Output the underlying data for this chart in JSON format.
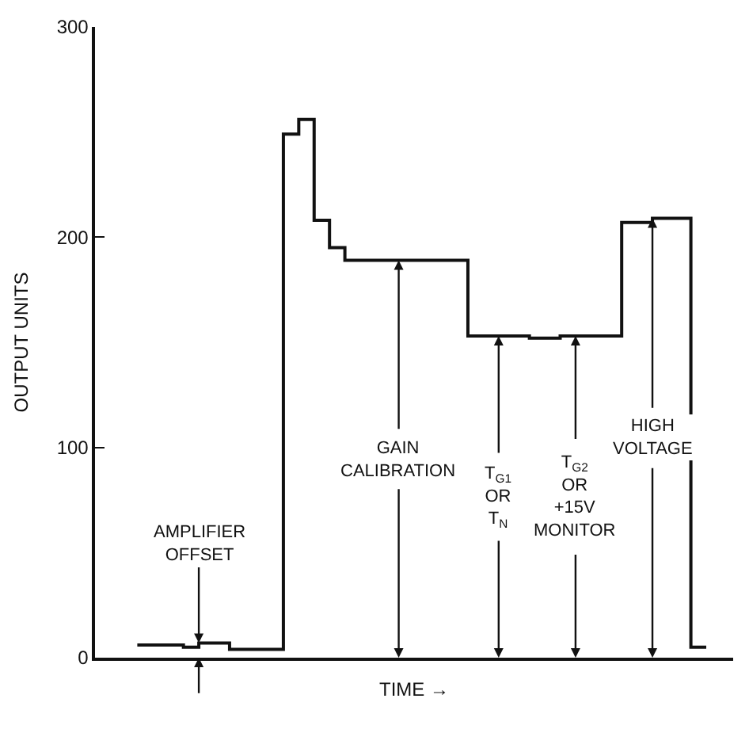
{
  "chart_data": {
    "type": "step",
    "xlabel": "TIME →",
    "ylabel": "OUTPUT UNITS",
    "categories": [
      null,
      null,
      null,
      null,
      null,
      null,
      null,
      null,
      null,
      null,
      null,
      null,
      null,
      null,
      null,
      null,
      null,
      null,
      null,
      null,
      null,
      null,
      null,
      null,
      null,
      null,
      null,
      null,
      null,
      null,
      null,
      null,
      null,
      null,
      null,
      null,
      null,
      null,
      null,
      null,
      null,
      null,
      null,
      null,
      null,
      null,
      null,
      null,
      null,
      null,
      null,
      null,
      null,
      null,
      null,
      null,
      null,
      null,
      null,
      null,
      null,
      null,
      null,
      null,
      null,
      null,
      null,
      null,
      null,
      null,
      null,
      null,
      null,
      null,
      null
    ],
    "values": [
      6,
      6,
      6,
      6,
      6,
      6,
      5,
      5,
      7,
      7,
      7,
      7,
      4,
      4,
      4,
      4,
      4,
      4,
      4,
      249,
      249,
      256,
      256,
      208,
      208,
      195,
      195,
      189,
      189,
      189,
      189,
      189,
      189,
      189,
      189,
      189,
      189,
      189,
      189,
      189,
      189,
      189,
      189,
      153,
      153,
      153,
      153,
      153,
      153,
      153,
      153,
      152,
      152,
      152,
      152,
      153,
      153,
      153,
      153,
      153,
      153,
      153,
      153,
      207,
      207,
      207,
      207,
      209,
      209,
      209,
      209,
      209,
      5,
      5,
      5
    ],
    "value_labels": [
      null,
      null,
      null,
      null,
      null,
      null,
      null,
      null,
      "AMPLIFIER\nOFFSET",
      null,
      null,
      null,
      null,
      null,
      null,
      null,
      null,
      null,
      null,
      null,
      null,
      null,
      null,
      null,
      null,
      null,
      null,
      null,
      null,
      null,
      null,
      null,
      null,
      null,
      "GAIN\nCALIBRATION",
      null,
      null,
      null,
      null,
      null,
      null,
      null,
      null,
      null,
      null,
      null,
      null,
      "T$_{G1}$\nOR\nT$_{N}$",
      null,
      null,
      null,
      null,
      null,
      null,
      null,
      null,
      null,
      "T$_{G2}$\nOR\n+15V\nMONITOR",
      null,
      null,
      null,
      null,
      null,
      null,
      null,
      null,
      null,
      "HIGH\nVOLTAGE",
      null,
      null,
      null,
      null,
      null,
      null,
      null
    ],
    "color": "#111111",
    "ylim": [
      0,
      300
    ],
    "yticks": [
      0,
      100,
      200,
      300
    ],
    "tick_labels": "y",
    "marker": "none",
    "line_style": "solid"
  }
}
